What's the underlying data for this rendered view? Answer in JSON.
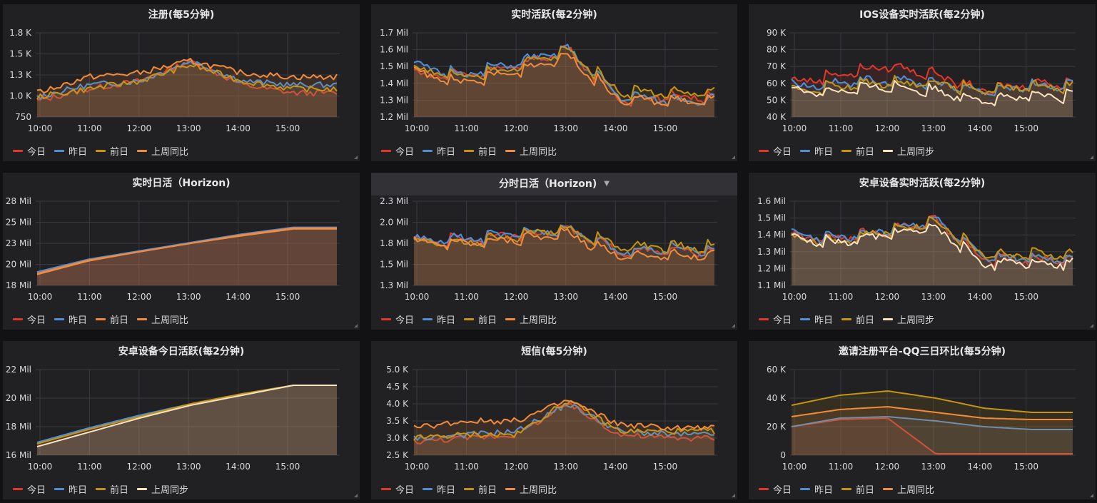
{
  "colors": {
    "today": "#e0392b",
    "yesterday": "#4f8fd8",
    "daybefore": "#c49412",
    "lastweek_orange": "#f08c3c",
    "lastweek_cream": "#fbe3bf",
    "daybefore_orange": "#f0883c"
  },
  "panels": [
    {
      "title": "注册(每5分钟)",
      "legend": [
        "今日",
        "昨日",
        "前日",
        "上周同比"
      ],
      "legend_colors": [
        "today",
        "yesterday",
        "daybefore",
        "lastweek_orange"
      ],
      "y_ticks": [
        "1.8 K",
        "1.5 K",
        "1.3 K",
        "1.0 K",
        "750"
      ],
      "x_ticks": [
        "10:00",
        "11:00",
        "12:00",
        "13:00",
        "14:00",
        "15:00"
      ]
    },
    {
      "title": "实时活跃(每2分钟)",
      "legend": [
        "今日",
        "昨日",
        "前日",
        "上周同比"
      ],
      "legend_colors": [
        "today",
        "yesterday",
        "daybefore",
        "lastweek_orange"
      ],
      "y_ticks": [
        "1.7 Mil",
        "1.6 Mil",
        "1.5 Mil",
        "1.4 Mil",
        "1.3 Mil",
        "1.2 Mil"
      ],
      "x_ticks": [
        "10:00",
        "11:00",
        "12:00",
        "13:00",
        "14:00",
        "15:00"
      ]
    },
    {
      "title": "IOS设备实时活跃(每2分钟)",
      "legend": [
        "今日",
        "昨日",
        "前日",
        "上周同步"
      ],
      "legend_colors": [
        "today",
        "yesterday",
        "daybefore",
        "lastweek_cream"
      ],
      "y_ticks": [
        "90 K",
        "80 K",
        "70 K",
        "60 K",
        "50 K",
        "40 K"
      ],
      "x_ticks": [
        "10:00",
        "11:00",
        "12:00",
        "13:00",
        "14:00",
        "15:00"
      ]
    },
    {
      "title": "实时日活（Horizon)",
      "legend": [
        "今日",
        "昨日",
        "前日",
        "上周同比"
      ],
      "legend_colors": [
        "today",
        "yesterday",
        "daybefore_orange",
        "lastweek_orange"
      ],
      "y_ticks": [
        "28 Mil",
        "25 Mil",
        "23 Mil",
        "20 Mil",
        "18 Mil"
      ],
      "x_ticks": [
        "10:00",
        "11:00",
        "12:00",
        "13:00",
        "14:00",
        "15:00"
      ]
    },
    {
      "title": "分时日活（Horizon)",
      "dropdown": true,
      "legend": [
        "今日",
        "昨日",
        "前日",
        "上周同比"
      ],
      "legend_colors": [
        "today",
        "yesterday",
        "daybefore",
        "lastweek_orange"
      ],
      "y_ticks": [
        "2.3 Mil",
        "2.0 Mil",
        "1.8 Mil",
        "1.5 Mil",
        "1.3 Mil"
      ],
      "x_ticks": [
        "10:00",
        "11:00",
        "12:00",
        "13:00",
        "14:00",
        "15:00"
      ]
    },
    {
      "title": "安卓设备实时活跃(每2分钟)",
      "legend": [
        "今日",
        "昨日",
        "前日",
        "上周同步"
      ],
      "legend_colors": [
        "today",
        "yesterday",
        "daybefore",
        "lastweek_cream"
      ],
      "y_ticks": [
        "1.6 Mil",
        "1.5 Mil",
        "1.4 Mil",
        "1.3 Mil",
        "1.2 Mil",
        "1.1 Mil"
      ],
      "x_ticks": [
        "10:00",
        "11:00",
        "12:00",
        "13:00",
        "14:00",
        "15:00"
      ]
    },
    {
      "title": "安卓设备今日活跃(每2分钟)",
      "legend": [
        "今日",
        "昨日",
        "前日",
        "上周同步"
      ],
      "legend_colors": [
        "today",
        "yesterday",
        "daybefore",
        "lastweek_cream"
      ],
      "y_ticks": [
        "22 Mil",
        "20 Mil",
        "18 Mil",
        "16 Mil"
      ],
      "x_ticks": [
        "10:00",
        "11:00",
        "12:00",
        "13:00",
        "14:00",
        "15:00"
      ]
    },
    {
      "title": "短信(每5分钟)",
      "legend": [
        "今日",
        "昨日",
        "前日",
        "上周同比"
      ],
      "legend_colors": [
        "today",
        "yesterday",
        "daybefore",
        "lastweek_orange"
      ],
      "y_ticks": [
        "5.0 K",
        "4.5 K",
        "4.0 K",
        "3.5 K",
        "3.0 K",
        "2.5 K"
      ],
      "x_ticks": [
        "10:00",
        "11:00",
        "12:00",
        "13:00",
        "14:00",
        "15:00"
      ]
    },
    {
      "title": "邀请注册平台-QQ三日环比(每5分钟)",
      "legend": [
        "今日",
        "昨日",
        "前日",
        "上周同比"
      ],
      "legend_colors": [
        "today",
        "yesterday",
        "daybefore",
        "lastweek_orange"
      ],
      "y_ticks": [
        "60 K",
        "40 K",
        "20 K",
        "0"
      ],
      "x_ticks": [
        "10:00",
        "11:00",
        "12:00",
        "13:00",
        "14:00",
        "15:00"
      ]
    }
  ],
  "chart_data": [
    {
      "type": "line",
      "title": "注册(每5分钟)",
      "ylim": [
        750,
        1800
      ],
      "x": [
        "10:00",
        "11:00",
        "12:00",
        "13:00",
        "14:00",
        "15:00"
      ],
      "series": [
        {
          "name": "今日",
          "values": [
            950,
            1100,
            1200,
            1450,
            1150,
            1050
          ]
        },
        {
          "name": "昨日",
          "values": [
            1000,
            1150,
            1200,
            1450,
            1200,
            1150
          ]
        },
        {
          "name": "前日",
          "values": [
            1000,
            1100,
            1200,
            1400,
            1200,
            1100
          ]
        },
        {
          "name": "上周同比",
          "values": [
            1050,
            1250,
            1300,
            1450,
            1300,
            1250
          ]
        }
      ]
    },
    {
      "type": "line",
      "title": "实时活跃(每2分钟)",
      "ylim": [
        1200000,
        1700000
      ],
      "x": [
        "10:00",
        "11:00",
        "12:00",
        "13:00",
        "14:00",
        "15:00"
      ],
      "series": [
        {
          "name": "今日",
          "values": [
            1450000,
            1450000,
            1500000,
            1600000,
            1300000,
            1320000
          ]
        },
        {
          "name": "昨日",
          "values": [
            1500000,
            1450000,
            1520000,
            1600000,
            1320000,
            1300000
          ]
        },
        {
          "name": "前日",
          "values": [
            1480000,
            1430000,
            1500000,
            1590000,
            1350000,
            1340000
          ]
        },
        {
          "name": "上周同比",
          "values": [
            1460000,
            1400000,
            1470000,
            1560000,
            1300000,
            1290000
          ]
        }
      ]
    },
    {
      "type": "line",
      "title": "IOS设备实时活跃(每2分钟)",
      "ylim": [
        40000,
        90000
      ],
      "x": [
        "10:00",
        "11:00",
        "12:00",
        "13:00",
        "14:00",
        "15:00"
      ],
      "series": [
        {
          "name": "今日",
          "values": [
            60000,
            65000,
            70000,
            65000,
            55000,
            60000
          ]
        },
        {
          "name": "昨日",
          "values": [
            58000,
            60000,
            62000,
            60000,
            55000,
            58000
          ]
        },
        {
          "name": "前日",
          "values": [
            55000,
            58000,
            60000,
            60000,
            55000,
            58000
          ]
        },
        {
          "name": "上周同步",
          "values": [
            55000,
            55000,
            58000,
            55000,
            50000,
            52000
          ]
        }
      ]
    },
    {
      "type": "area",
      "title": "实时日活（Horizon)",
      "ylim": [
        18000000,
        28000000
      ],
      "x": [
        "10:00",
        "11:00",
        "12:00",
        "13:00",
        "14:00",
        "15:00"
      ],
      "series": [
        {
          "name": "今日",
          "values": [
            19500000,
            21000000,
            22000000,
            23000000,
            24000000,
            24800000
          ]
        },
        {
          "name": "昨日",
          "values": [
            19600000,
            21100000,
            22100000,
            23100000,
            24100000,
            24900000
          ]
        },
        {
          "name": "前日",
          "values": [
            19400000,
            21000000,
            22000000,
            23000000,
            24000000,
            24800000
          ]
        },
        {
          "name": "上周同比",
          "values": [
            19300000,
            20900000,
            22000000,
            23000000,
            23900000,
            24700000
          ]
        }
      ]
    },
    {
      "type": "line",
      "title": "分时日活（Horizon)",
      "ylim": [
        1300000,
        2300000
      ],
      "x": [
        "10:00",
        "11:00",
        "12:00",
        "13:00",
        "14:00",
        "15:00"
      ],
      "series": [
        {
          "name": "今日",
          "values": [
            1800000,
            1850000,
            1900000,
            1950000,
            1700000,
            1700000
          ]
        },
        {
          "name": "昨日",
          "values": [
            1820000,
            1850000,
            1900000,
            1980000,
            1700000,
            1720000
          ]
        },
        {
          "name": "前日",
          "values": [
            1800000,
            1800000,
            1880000,
            1970000,
            1750000,
            1750000
          ]
        },
        {
          "name": "上周同比",
          "values": [
            1800000,
            1800000,
            1850000,
            1900000,
            1650000,
            1650000
          ]
        }
      ]
    },
    {
      "type": "line",
      "title": "安卓设备实时活跃(每2分钟)",
      "ylim": [
        1100000,
        1600000
      ],
      "x": [
        "10:00",
        "11:00",
        "12:00",
        "13:00",
        "14:00",
        "15:00"
      ],
      "series": [
        {
          "name": "今日",
          "values": [
            1380000,
            1380000,
            1420000,
            1480000,
            1250000,
            1250000
          ]
        },
        {
          "name": "昨日",
          "values": [
            1400000,
            1380000,
            1430000,
            1490000,
            1260000,
            1260000
          ]
        },
        {
          "name": "前日",
          "values": [
            1380000,
            1360000,
            1420000,
            1480000,
            1280000,
            1280000
          ]
        },
        {
          "name": "上周同步",
          "values": [
            1370000,
            1350000,
            1400000,
            1440000,
            1230000,
            1230000
          ]
        }
      ]
    },
    {
      "type": "area",
      "title": "安卓设备今日活跃(每2分钟)",
      "ylim": [
        16000000,
        22000000
      ],
      "x": [
        "10:00",
        "11:00",
        "12:00",
        "13:00",
        "14:00",
        "15:00"
      ],
      "series": [
        {
          "name": "今日",
          "values": [
            16800000,
            17800000,
            18700000,
            19600000,
            20300000,
            20900000
          ]
        },
        {
          "name": "昨日",
          "values": [
            16900000,
            17900000,
            18800000,
            19600000,
            20300000,
            20900000
          ]
        },
        {
          "name": "前日",
          "values": [
            16800000,
            17800000,
            18700000,
            19600000,
            20300000,
            20900000
          ]
        },
        {
          "name": "上周同步",
          "values": [
            16600000,
            17600000,
            18600000,
            19500000,
            20200000,
            20900000
          ]
        }
      ]
    },
    {
      "type": "line",
      "title": "短信(每5分钟)",
      "ylim": [
        2500,
        5000
      ],
      "x": [
        "10:00",
        "11:00",
        "12:00",
        "13:00",
        "14:00",
        "15:00"
      ],
      "series": [
        {
          "name": "今日",
          "values": [
            2900,
            3000,
            3100,
            4000,
            3100,
            3000
          ]
        },
        {
          "name": "昨日",
          "values": [
            3000,
            3100,
            3200,
            4000,
            3200,
            3100
          ]
        },
        {
          "name": "前日",
          "values": [
            3000,
            3100,
            3100,
            4100,
            3200,
            3200
          ]
        },
        {
          "name": "上周同比",
          "values": [
            3300,
            3500,
            3500,
            4100,
            3400,
            3300
          ]
        }
      ]
    },
    {
      "type": "area",
      "title": "邀请注册平台-QQ三日环比(每5分钟)",
      "ylim": [
        0,
        60000
      ],
      "x": [
        "10:00",
        "11:00",
        "12:00",
        "13:00",
        "14:00",
        "15:00"
      ],
      "series": [
        {
          "name": "今日",
          "values": [
            20000,
            25000,
            26000,
            1000,
            1000,
            1000
          ]
        },
        {
          "name": "昨日",
          "values": [
            20000,
            26000,
            27000,
            24000,
            20000,
            18000
          ]
        },
        {
          "name": "前日",
          "values": [
            35000,
            42000,
            45000,
            40000,
            33000,
            30000
          ]
        },
        {
          "name": "上周同比",
          "values": [
            27000,
            32000,
            34000,
            30000,
            26000,
            25000
          ]
        }
      ]
    }
  ]
}
